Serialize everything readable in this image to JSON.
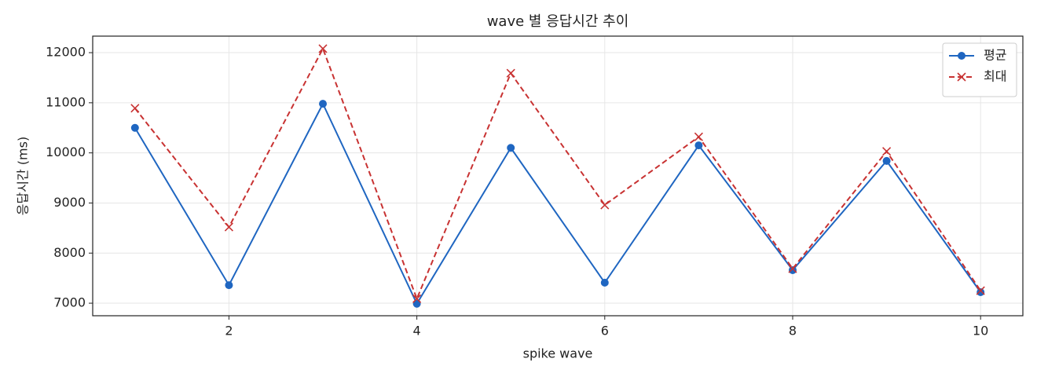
{
  "chart_data": {
    "type": "line",
    "title": "wave 별 응답시간 추이",
    "xlabel": "spike wave",
    "ylabel": "응답시간 (ms)",
    "x": [
      1,
      2,
      3,
      4,
      5,
      6,
      7,
      8,
      9,
      10
    ],
    "series": [
      {
        "name": "평균",
        "color": "#1f66c1",
        "marker": "o",
        "linestyle": "solid",
        "values": [
          10500,
          7360,
          10980,
          6990,
          10100,
          7410,
          10150,
          7660,
          9840,
          7220
        ]
      },
      {
        "name": "최대",
        "color": "#c83232",
        "marker": "x",
        "linestyle": "dashed",
        "values": [
          10890,
          8520,
          12080,
          7090,
          11590,
          8960,
          10320,
          7690,
          10030,
          7250
        ]
      }
    ],
    "xlim": [
      0.55,
      10.45
    ],
    "xticks": [
      2,
      4,
      6,
      8,
      10
    ],
    "ylim": [
      6750,
      12330
    ],
    "yticks": [
      7000,
      8000,
      9000,
      10000,
      11000,
      12000
    ],
    "grid": true,
    "legend": "upper right"
  }
}
